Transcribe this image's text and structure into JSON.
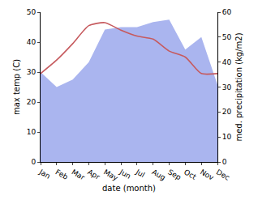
{
  "chart_data": {
    "type": "line",
    "categories": [
      "Jan",
      "Feb",
      "Mar",
      "Apr",
      "May",
      "Jun",
      "Jul",
      "Aug",
      "Sep",
      "Oct",
      "Nov",
      "Dec"
    ],
    "x_label": "date (month)",
    "y_label": "max temp (C)",
    "y2_label": "med. precipitation (kg/m2)",
    "series": [
      {
        "name": "med. precipitation (kg/m2)",
        "type": "area",
        "axis": "y2",
        "color": "#aab5ef",
        "values": [
          36,
          30,
          33,
          40,
          53,
          54,
          54,
          56,
          57,
          45,
          50,
          31
        ]
      },
      {
        "name": "max temp (C)",
        "type": "line",
        "color": "#c65a5e",
        "values": [
          29.5,
          34,
          39.5,
          45.5,
          46.5,
          44,
          42,
          41,
          37,
          35,
          29.5,
          29.5
        ]
      }
    ],
    "ylim": [
      0,
      50
    ],
    "yticks": [
      0,
      10,
      20,
      30,
      40,
      50
    ],
    "y2lim": [
      0,
      60
    ],
    "y2ticks": [
      0,
      10,
      20,
      30,
      40,
      50,
      60
    ],
    "grid": false
  }
}
